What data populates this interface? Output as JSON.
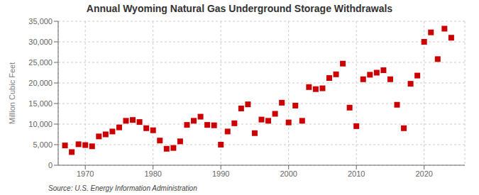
{
  "chart_data": {
    "type": "scatter",
    "title": "Annual Wyoming Natural  Gas Underground Storage Withdrawals",
    "y_label": "Million Cubic Feet",
    "source": "Source: U.S. Energy Information Administration",
    "x": [
      1967,
      1968,
      1969,
      1970,
      1971,
      1972,
      1973,
      1974,
      1975,
      1976,
      1977,
      1978,
      1979,
      1980,
      1981,
      1982,
      1983,
      1984,
      1985,
      1986,
      1987,
      1988,
      1989,
      1990,
      1991,
      1992,
      1993,
      1994,
      1995,
      1996,
      1997,
      1998,
      1999,
      2000,
      2001,
      2002,
      2003,
      2004,
      2005,
      2006,
      2007,
      2008,
      2009,
      2010,
      2011,
      2012,
      2013,
      2014,
      2015,
      2016,
      2017,
      2018,
      2019,
      2020,
      2021,
      2022,
      2023,
      2024
    ],
    "values": [
      4800,
      3200,
      5100,
      4900,
      4600,
      7000,
      7500,
      8200,
      9200,
      10800,
      11000,
      10500,
      9000,
      8500,
      6000,
      4000,
      4200,
      5800,
      9800,
      10800,
      11800,
      9800,
      9700,
      5000,
      8200,
      10200,
      13800,
      14800,
      7800,
      11100,
      10800,
      12500,
      15200,
      10400,
      14500,
      10800,
      19000,
      18500,
      18700,
      21200,
      22100,
      24700,
      14000,
      9500,
      20900,
      22000,
      22500,
      23100,
      20900,
      14700,
      9000,
      19800,
      21800,
      30000,
      32300,
      25800,
      33200,
      31000
    ],
    "color": "#cc0000",
    "marker": "square",
    "xlim": [
      1966,
      2026
    ],
    "xticks": [
      1970,
      1980,
      1990,
      2000,
      2010,
      2020
    ],
    "ylim": [
      0,
      35000
    ],
    "yticks": [
      0,
      {
        "value": 5000,
        "label": "5,000"
      },
      {
        "value": 10000,
        "label": "10,000"
      },
      {
        "value": 15000,
        "label": "15,000"
      },
      {
        "value": 20000,
        "label": "20,000"
      },
      {
        "value": 25000,
        "label": "25,000"
      },
      {
        "value": 30000,
        "label": "30,000"
      },
      {
        "value": 35000,
        "label": "35,000"
      }
    ],
    "grid": true
  }
}
